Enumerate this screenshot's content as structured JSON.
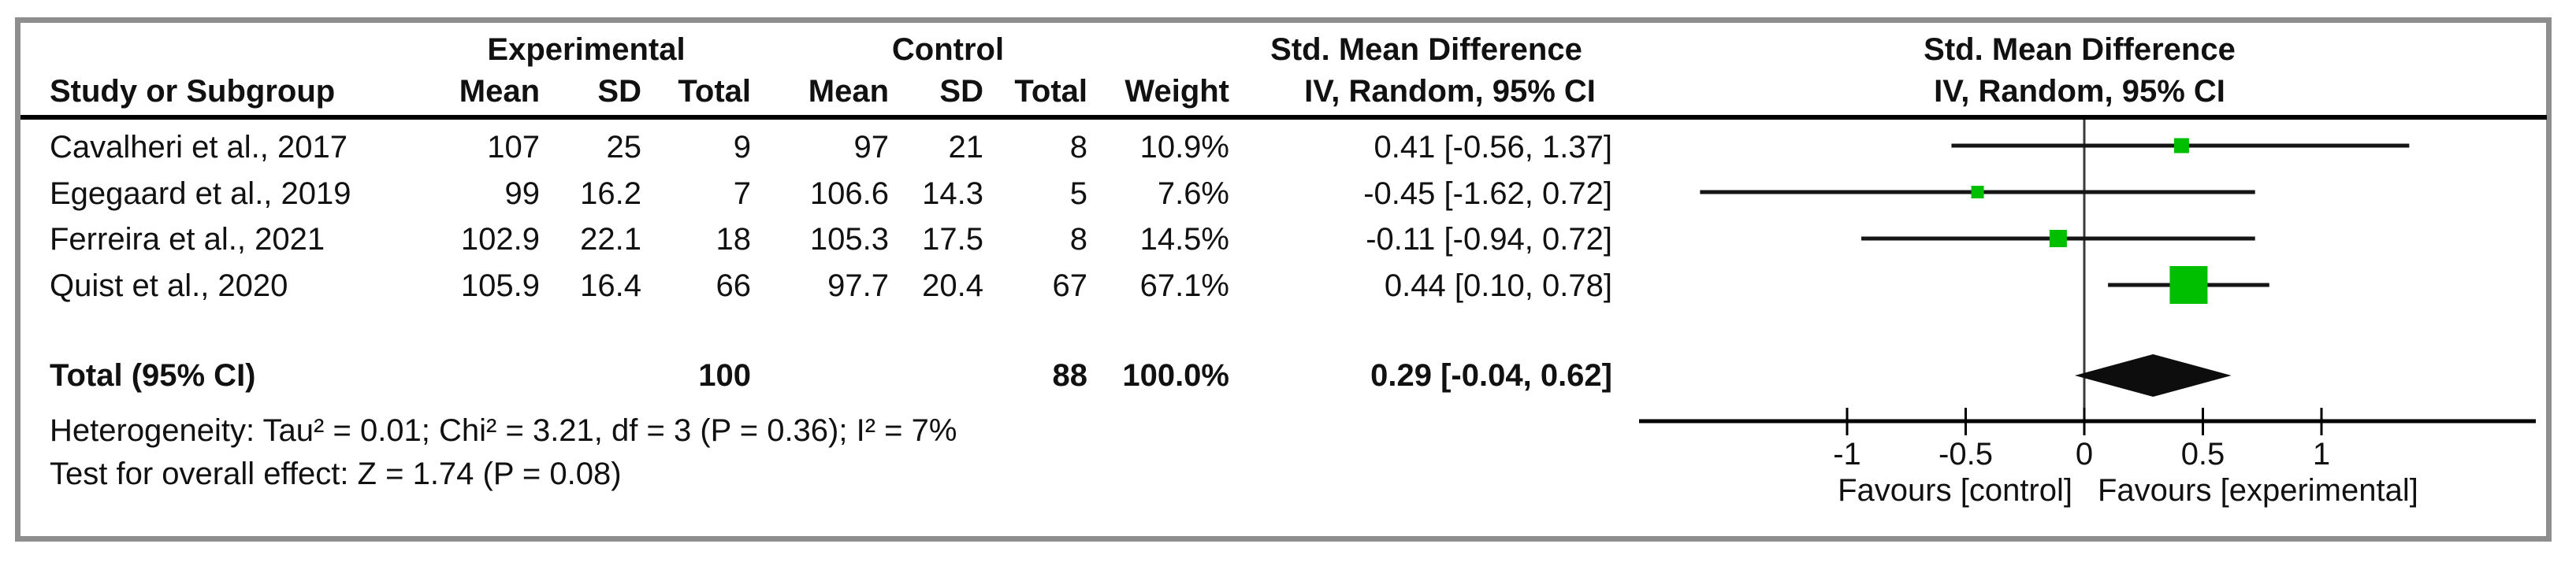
{
  "table": {
    "group_headers": {
      "experimental": "Experimental",
      "control": "Control",
      "smd_line1": "Std. Mean Difference",
      "smd_line2": "IV, Random, 95% CI"
    },
    "col_headers": {
      "study": "Study or Subgroup",
      "mean_exp": "Mean",
      "sd_exp": "SD",
      "total_exp": "Total",
      "mean_ctrl": "Mean",
      "sd_ctrl": "SD",
      "total_ctrl": "Total",
      "weight": "Weight"
    },
    "rows": [
      {
        "study": "Cavalheri et al., 2017",
        "mean_e": "107",
        "sd_e": "25",
        "total_e": "9",
        "mean_c": "97",
        "sd_c": "21",
        "total_c": "8",
        "weight": "10.9%",
        "ci": "0.41 [-0.56, 1.37]"
      },
      {
        "study": "Egegaard et al., 2019",
        "mean_e": "99",
        "sd_e": "16.2",
        "total_e": "7",
        "mean_c": "106.6",
        "sd_c": "14.3",
        "total_c": "5",
        "weight": "7.6%",
        "ci": "-0.45 [-1.62, 0.72]"
      },
      {
        "study": "Ferreira et al., 2021",
        "mean_e": "102.9",
        "sd_e": "22.1",
        "total_e": "18",
        "mean_c": "105.3",
        "sd_c": "17.5",
        "total_c": "8",
        "weight": "14.5%",
        "ci": "-0.11 [-0.94, 0.72]"
      },
      {
        "study": "Quist et al., 2020",
        "mean_e": "105.9",
        "sd_e": "16.4",
        "total_e": "66",
        "mean_c": "97.7",
        "sd_c": "20.4",
        "total_c": "67",
        "weight": "67.1%",
        "ci": "0.44 [0.10, 0.78]"
      }
    ],
    "total_row": {
      "label": "Total (95% CI)",
      "total_e": "100",
      "total_c": "88",
      "weight": "100.0%",
      "ci": "0.29 [-0.04, 0.62]"
    },
    "footnotes": {
      "heterogeneity": "Heterogeneity: Tau² = 0.01; Chi² = 3.21, df = 3 (P = 0.36); I² = 7%",
      "overall_effect": "Test for overall effect: Z = 1.74 (P = 0.08)"
    }
  },
  "plot": {
    "header_line1": "Std. Mean Difference",
    "header_line2": "IV, Random, 95% CI",
    "favours_left": "Favours [control]",
    "favours_right": "Favours [experimental]"
  },
  "chart_data": {
    "type": "forest",
    "title": "Std. Mean Difference",
    "model": "IV, Random, 95% CI",
    "studies": [
      {
        "name": "Cavalheri et al., 2017",
        "effect": 0.41,
        "ci_lower": -0.56,
        "ci_upper": 1.37,
        "weight_pct": 10.9
      },
      {
        "name": "Egegaard et al., 2019",
        "effect": -0.45,
        "ci_lower": -1.62,
        "ci_upper": 0.72,
        "weight_pct": 7.6
      },
      {
        "name": "Ferreira et al., 2021",
        "effect": -0.11,
        "ci_lower": -0.94,
        "ci_upper": 0.72,
        "weight_pct": 14.5
      },
      {
        "name": "Quist et al., 2020",
        "effect": 0.44,
        "ci_lower": 0.1,
        "ci_upper": 0.78,
        "weight_pct": 67.1
      }
    ],
    "overall": {
      "effect": 0.29,
      "ci_lower": -0.04,
      "ci_upper": 0.62
    },
    "axis": {
      "ticks": [
        -1,
        -0.5,
        0,
        0.5,
        1
      ],
      "tick_labels": [
        "-1",
        "-0.5",
        "0",
        "0.5",
        "1"
      ],
      "xmin": -1.9,
      "xmax": 1.9,
      "left_label": "Favours [control]",
      "right_label": "Favours [experimental]"
    },
    "marker_color": "#00be00",
    "diamond_color": "#0d0d0d"
  }
}
